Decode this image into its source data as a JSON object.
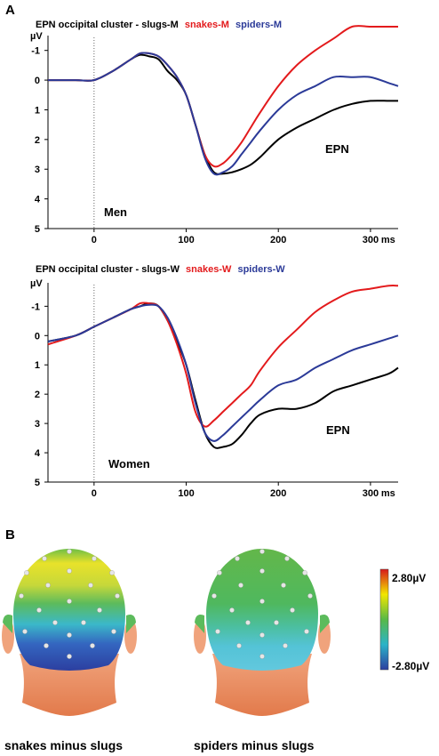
{
  "panel_a": {
    "label": "A",
    "charts": [
      {
        "title_prefix": "EPN occipital cluster - slugs-M",
        "title_snakes": "snakes-M",
        "title_spiders": "spiders-M",
        "group_label": "Men",
        "component_label": "EPN"
      },
      {
        "title_prefix": "EPN occipital cluster - slugs-W",
        "title_snakes": "snakes-W",
        "title_spiders": "spiders-W",
        "group_label": "Women",
        "component_label": "EPN"
      }
    ]
  },
  "panel_b": {
    "label": "B",
    "maps": [
      {
        "caption": "snakes minus slugs"
      },
      {
        "caption": "spiders minus slugs"
      }
    ],
    "colorbar": {
      "max_label": "2.80µV",
      "min_label": "-2.80µV",
      "colors": [
        "#d7191c",
        "#f2e600",
        "#58b947",
        "#2bb3c8",
        "#2c3fa0"
      ]
    }
  },
  "chart_data": [
    {
      "type": "line",
      "title": "EPN occipital cluster - slugs-M snakes-M spiders-M",
      "ylabel": "µV",
      "x_unit_label": "ms",
      "xlim": [
        -50,
        330
      ],
      "ylim": [
        5,
        -1.5
      ],
      "y_inverted": true,
      "x_ticks": [
        0,
        100,
        200,
        300
      ],
      "y_ticks": [
        -1,
        0,
        1,
        2,
        3,
        4,
        5
      ],
      "grid": false,
      "annotations": [
        "Men",
        "EPN"
      ],
      "colors": {
        "slugs": "#000000",
        "snakes": "#e31a1c",
        "spiders": "#2b3a98"
      },
      "series": [
        {
          "name": "slugs-M",
          "color": "#000000",
          "x": [
            -50,
            -20,
            0,
            20,
            40,
            50,
            60,
            70,
            80,
            90,
            100,
            110,
            120,
            130,
            140,
            150,
            160,
            170,
            180,
            200,
            220,
            240,
            260,
            280,
            300,
            320,
            330
          ],
          "y": [
            0,
            0,
            0,
            -0.3,
            -0.7,
            -0.85,
            -0.8,
            -0.7,
            -0.3,
            0,
            0.5,
            1.5,
            2.5,
            3.1,
            3.15,
            3.1,
            3.0,
            2.85,
            2.6,
            2.0,
            1.6,
            1.3,
            1.0,
            0.8,
            0.7,
            0.7,
            0.7
          ]
        },
        {
          "name": "snakes-M",
          "color": "#e31a1c",
          "x": [
            -50,
            -20,
            0,
            20,
            40,
            50,
            60,
            70,
            80,
            90,
            100,
            110,
            120,
            130,
            140,
            150,
            160,
            170,
            180,
            200,
            220,
            240,
            260,
            280,
            300,
            320,
            330
          ],
          "y": [
            0,
            0,
            0,
            -0.3,
            -0.7,
            -0.9,
            -0.9,
            -0.8,
            -0.5,
            -0.1,
            0.5,
            1.5,
            2.5,
            2.9,
            2.8,
            2.5,
            2.1,
            1.6,
            1.1,
            0.2,
            -0.5,
            -1.0,
            -1.4,
            -1.8,
            -1.8,
            -1.8,
            -1.8
          ]
        },
        {
          "name": "spiders-M",
          "color": "#2b3a98",
          "x": [
            -50,
            -20,
            0,
            20,
            40,
            50,
            60,
            70,
            80,
            90,
            100,
            110,
            120,
            130,
            140,
            150,
            160,
            170,
            180,
            200,
            220,
            240,
            260,
            280,
            300,
            320,
            330
          ],
          "y": [
            0,
            0,
            0,
            -0.3,
            -0.7,
            -0.9,
            -0.9,
            -0.8,
            -0.5,
            -0.1,
            0.5,
            1.5,
            2.6,
            3.15,
            3.1,
            2.9,
            2.5,
            2.1,
            1.7,
            1.0,
            0.5,
            0.2,
            -0.1,
            -0.1,
            -0.1,
            0.1,
            0.2
          ]
        }
      ]
    },
    {
      "type": "line",
      "title": "EPN occipital cluster - slugs-W snakes-W spiders-W",
      "ylabel": "µV",
      "x_unit_label": "ms",
      "xlim": [
        -50,
        330
      ],
      "ylim": [
        5,
        -1.8
      ],
      "y_inverted": true,
      "x_ticks": [
        0,
        100,
        200,
        300
      ],
      "y_ticks": [
        -1,
        0,
        1,
        2,
        3,
        4,
        5
      ],
      "grid": false,
      "annotations": [
        "Women",
        "EPN"
      ],
      "colors": {
        "slugs": "#000000",
        "snakes": "#e31a1c",
        "spiders": "#2b3a98"
      },
      "series": [
        {
          "name": "slugs-W",
          "color": "#000000",
          "x": [
            -50,
            -20,
            0,
            20,
            40,
            50,
            60,
            70,
            80,
            90,
            100,
            110,
            120,
            130,
            140,
            150,
            160,
            170,
            180,
            200,
            220,
            240,
            260,
            280,
            300,
            320,
            330
          ],
          "y": [
            0.2,
            0,
            -0.3,
            -0.6,
            -0.9,
            -1.0,
            -1.1,
            -1.0,
            -0.5,
            0.2,
            1.0,
            2.2,
            3.3,
            3.8,
            3.8,
            3.7,
            3.4,
            3.0,
            2.7,
            2.5,
            2.5,
            2.3,
            1.9,
            1.7,
            1.5,
            1.3,
            1.1
          ]
        },
        {
          "name": "snakes-W",
          "color": "#e31a1c",
          "x": [
            -50,
            -20,
            0,
            20,
            40,
            50,
            60,
            70,
            80,
            90,
            100,
            110,
            120,
            130,
            140,
            150,
            160,
            170,
            180,
            200,
            220,
            240,
            260,
            280,
            300,
            320,
            330
          ],
          "y": [
            0.3,
            0,
            -0.3,
            -0.6,
            -0.9,
            -1.1,
            -1.1,
            -1.0,
            -0.5,
            0.3,
            1.3,
            2.6,
            3.1,
            2.9,
            2.6,
            2.3,
            2.0,
            1.7,
            1.2,
            0.4,
            -0.2,
            -0.8,
            -1.2,
            -1.5,
            -1.6,
            -1.7,
            -1.7
          ]
        },
        {
          "name": "spiders-W",
          "color": "#2b3a98",
          "x": [
            -50,
            -20,
            0,
            20,
            40,
            50,
            60,
            70,
            80,
            90,
            100,
            110,
            120,
            130,
            140,
            150,
            160,
            170,
            180,
            200,
            220,
            240,
            260,
            280,
            300,
            320,
            330
          ],
          "y": [
            0.2,
            0,
            -0.3,
            -0.6,
            -0.9,
            -1.0,
            -1.05,
            -1.0,
            -0.6,
            0.1,
            1.0,
            2.3,
            3.3,
            3.6,
            3.4,
            3.1,
            2.8,
            2.5,
            2.2,
            1.7,
            1.5,
            1.1,
            0.8,
            0.5,
            0.3,
            0.1,
            0.0
          ]
        }
      ]
    }
  ]
}
